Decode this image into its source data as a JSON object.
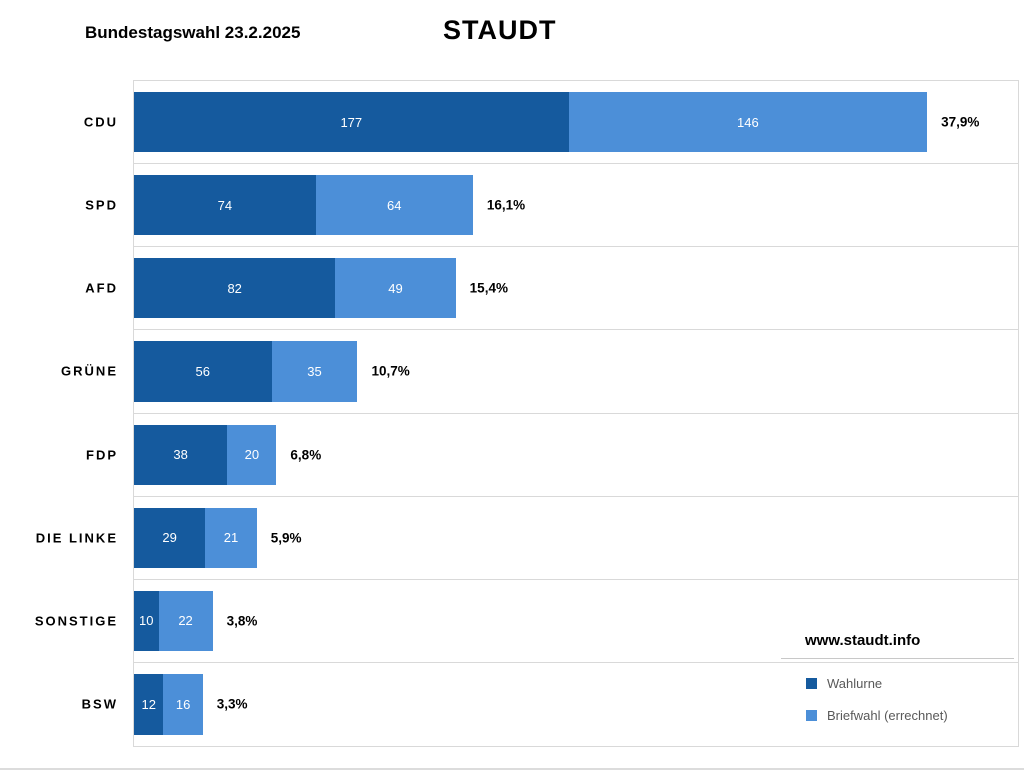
{
  "page": {
    "title": "Bundestagswahl 23.2.2025",
    "location": "STAUDT",
    "watermark": "www.staudt.info"
  },
  "colors": {
    "series_dark": "#155A9E",
    "series_light": "#4C8FD8",
    "grid": "#D9D9D9",
    "legend_text": "#595959",
    "bar_value_text": "#FFFFFF",
    "title_text": "#000000"
  },
  "legend": {
    "items": [
      {
        "label": "Wahlurne",
        "color": "#155A9E"
      },
      {
        "label": "Briefwahl (errechnet)",
        "color": "#4C8FD8"
      }
    ]
  },
  "chart_data": {
    "type": "bar",
    "orientation": "horizontal",
    "stacked": true,
    "title": "Bundestagswahl 23.2.2025",
    "subtitle": "STAUDT",
    "categories": [
      "CDU",
      "SPD",
      "AFD",
      "GRÜNE",
      "FDP",
      "DIE LINKE",
      "SONSTIGE",
      "BSW"
    ],
    "series": [
      {
        "name": "Wahlurne",
        "color": "#155A9E",
        "values": [
          177,
          74,
          82,
          56,
          38,
          29,
          10,
          12
        ]
      },
      {
        "name": "Briefwahl (errechnet)",
        "color": "#4C8FD8",
        "values": [
          146,
          64,
          49,
          35,
          20,
          21,
          22,
          16
        ]
      }
    ],
    "totals_percent": [
      "37,9%",
      "16,1%",
      "15,4%",
      "10,7%",
      "6,8%",
      "5,9%",
      "3,8%",
      "3,3%"
    ],
    "axis_max": 360,
    "value_labels": "inside segments, white",
    "grid": "horizontal category separators, light gray",
    "legend_position": "bottom-right"
  }
}
